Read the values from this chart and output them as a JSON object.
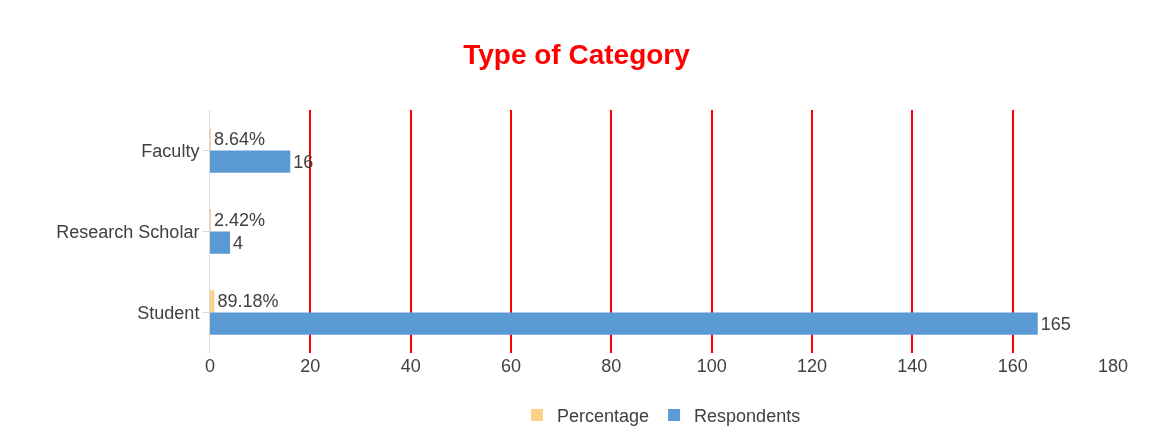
{
  "chart_data": {
    "type": "bar",
    "orientation": "horizontal",
    "title": "Type of Category",
    "categories": [
      "Faculty",
      "Research Scholar",
      "Student"
    ],
    "series": [
      {
        "name": "Percentage",
        "color": "#fbd28a",
        "values": [
          0.0864,
          0.0242,
          0.8918
        ],
        "value_labels": [
          "8.64%",
          "2.42%",
          "89.18%"
        ]
      },
      {
        "name": "Respondents",
        "color": "#5b9bd5",
        "values": [
          16,
          4,
          165
        ],
        "value_labels": [
          "16",
          "4",
          "165"
        ]
      }
    ],
    "xlim": [
      0,
      180
    ],
    "xticks": [
      0,
      20,
      40,
      60,
      80,
      100,
      120,
      140,
      160,
      180
    ],
    "grid": "x",
    "legend": "bottom"
  }
}
